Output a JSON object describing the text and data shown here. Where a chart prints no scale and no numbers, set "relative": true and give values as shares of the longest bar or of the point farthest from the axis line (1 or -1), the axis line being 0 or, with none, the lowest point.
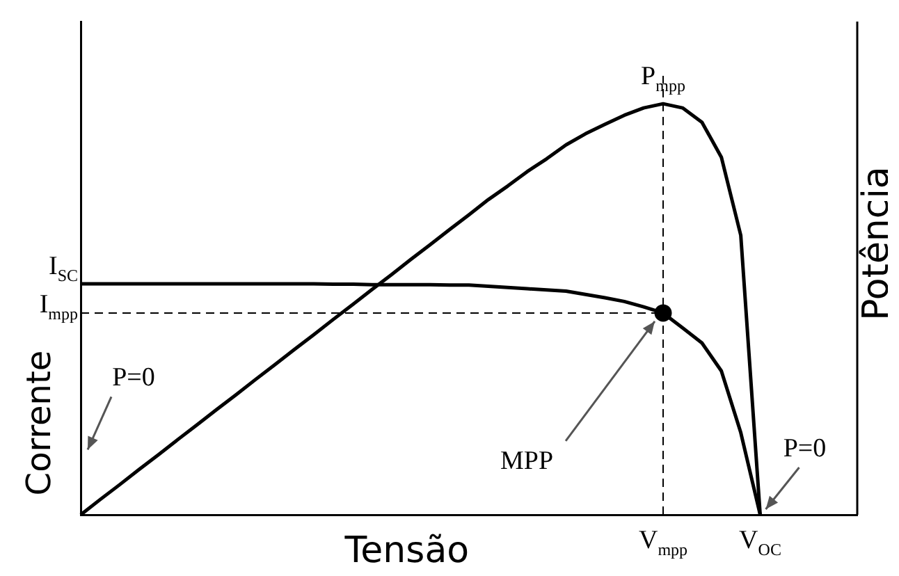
{
  "chart_data": {
    "type": "line",
    "relative": true,
    "xlabel": "Tensão",
    "ylabel": "Corrente",
    "y2label": "Potência",
    "grid": false,
    "legend": false,
    "marker": "none",
    "line_style": "solid",
    "categories": [
      null,
      null,
      null,
      null,
      null,
      null,
      null,
      null,
      null,
      null,
      null,
      null,
      null,
      null,
      null,
      null,
      null,
      null,
      null,
      null,
      null,
      null,
      null,
      null,
      null,
      null,
      null,
      null,
      null,
      null,
      "V$_{mpp}$",
      null,
      null,
      null,
      null,
      "V$_{OC}$",
      null,
      null,
      null,
      null,
      null
    ],
    "series": [
      {
        "color": "#000000",
        "values": [
          0.562,
          0.562,
          0.562,
          0.562,
          0.562,
          0.562,
          0.562,
          0.562,
          0.562,
          0.562,
          0.562,
          0.562,
          0.562,
          0.561,
          0.561,
          0.56,
          0.56,
          0.56,
          0.56,
          0.559,
          0.559,
          0.556,
          0.553,
          0.55,
          0.547,
          0.544,
          0.536,
          0.528,
          0.519,
          0.506,
          0.491,
          0.455,
          0.418,
          0.35,
          0.2,
          0,
          null,
          null,
          null,
          null,
          null
        ]
      },
      {
        "color": "#000000",
        "values": [
          0,
          0.037,
          0.073,
          0.11,
          0.146,
          0.183,
          0.219,
          0.256,
          0.292,
          0.329,
          0.365,
          0.402,
          0.438,
          0.475,
          0.511,
          0.548,
          0.584,
          0.621,
          0.657,
          0.694,
          0.73,
          0.767,
          0.8,
          0.835,
          0.866,
          0.9,
          0.927,
          0.95,
          0.972,
          0.99,
          1,
          0.99,
          0.955,
          0.87,
          0.68,
          0,
          null,
          null,
          null,
          null,
          null
        ]
      },
      {
        "color": "#000000",
        "line_style": "dashed",
        "values": [
          0.491,
          0.491,
          0.491,
          0.491,
          0.491,
          0.491,
          0.491,
          0.491,
          0.491,
          0.491,
          0.491,
          0.491,
          0.491,
          0.491,
          0.491,
          0.491,
          0.491,
          0.491,
          0.491,
          0.491,
          0.491,
          0.491,
          0.491,
          0.491,
          0.491,
          0.491,
          0.491,
          0.491,
          0.491,
          0.491,
          0.491,
          null,
          null,
          null,
          null,
          null,
          null,
          null,
          null,
          null,
          null
        ]
      },
      {
        "type": "scatter",
        "marker": "circle",
        "color": "#000000",
        "x": [
          "V$_{mpp}$"
        ],
        "values": [
          0.491
        ]
      }
    ],
    "ref_lines": [
      {
        "axis": "x",
        "value": "V$_{mpp}$",
        "color": "#000000",
        "line_style": "dashed"
      }
    ],
    "annotations": [
      {
        "text": "P$_{mpp}$",
        "x": "V$_{mpp}$",
        "y": 1
      },
      {
        "text": "MPP",
        "x": "V$_{mpp}$",
        "y": 0.491
      },
      "P=0",
      {
        "text": "P=0",
        "x": "V$_{OC}$",
        "y": 0
      },
      "I$_{SC}$",
      "I$_{mpp}$"
    ]
  }
}
